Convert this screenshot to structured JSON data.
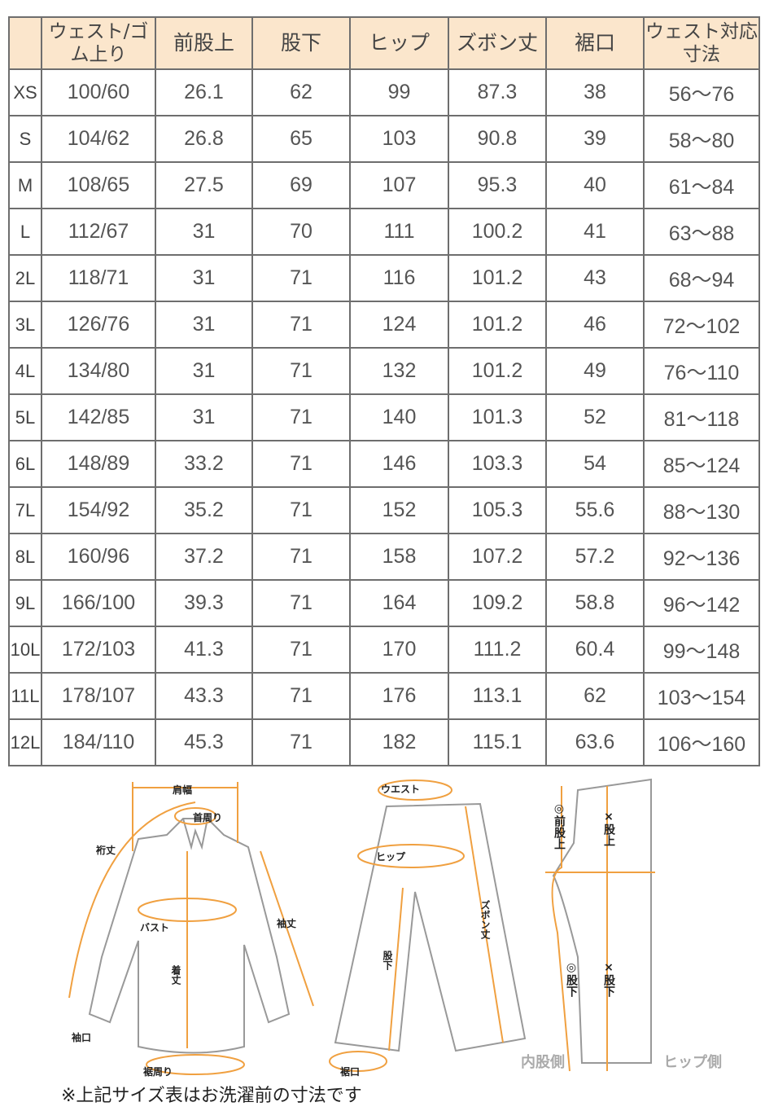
{
  "table": {
    "headers": [
      "",
      "ウェスト/ゴム上り",
      "前股上",
      "股下",
      "ヒップ",
      "ズボン丈",
      "裾口",
      "ウェスト対応寸法"
    ],
    "rows": [
      [
        "XS",
        "100/60",
        "26.1",
        "62",
        "99",
        "87.3",
        "38",
        "56～76"
      ],
      [
        "S",
        "104/62",
        "26.8",
        "65",
        "103",
        "90.8",
        "39",
        "58～80"
      ],
      [
        "M",
        "108/65",
        "27.5",
        "69",
        "107",
        "95.3",
        "40",
        "61～84"
      ],
      [
        "L",
        "112/67",
        "31",
        "70",
        "111",
        "100.2",
        "41",
        "63～88"
      ],
      [
        "2L",
        "118/71",
        "31",
        "71",
        "116",
        "101.2",
        "43",
        "68～94"
      ],
      [
        "3L",
        "126/76",
        "31",
        "71",
        "124",
        "101.2",
        "46",
        "72～102"
      ],
      [
        "4L",
        "134/80",
        "31",
        "71",
        "132",
        "101.2",
        "49",
        "76～110"
      ],
      [
        "5L",
        "142/85",
        "31",
        "71",
        "140",
        "101.3",
        "52",
        "81～118"
      ],
      [
        "6L",
        "148/89",
        "33.2",
        "71",
        "146",
        "103.3",
        "54",
        "85～124"
      ],
      [
        "7L",
        "154/92",
        "35.2",
        "71",
        "152",
        "105.3",
        "55.6",
        "88～130"
      ],
      [
        "8L",
        "160/96",
        "37.2",
        "71",
        "158",
        "107.2",
        "57.2",
        "92～136"
      ],
      [
        "9L",
        "166/100",
        "39.3",
        "71",
        "164",
        "109.2",
        "58.8",
        "96～142"
      ],
      [
        "10L",
        "172/103",
        "41.3",
        "71",
        "170",
        "111.2",
        "60.4",
        "99～148"
      ],
      [
        "11L",
        "178/107",
        "43.3",
        "71",
        "176",
        "113.1",
        "62",
        "103～154"
      ],
      [
        "12L",
        "184/110",
        "45.3",
        "71",
        "182",
        "115.1",
        "63.6",
        "106～160"
      ]
    ]
  },
  "diagram": {
    "shirt": {
      "shoulder": "肩幅",
      "neck": "首周り",
      "yuki": "裄丈",
      "sleeve": "袖丈",
      "bust": "バスト",
      "length": "着丈",
      "cuff": "袖口",
      "hem": "裾周り"
    },
    "pants": {
      "waist": "ウエスト",
      "hip": "ヒップ",
      "inseam": "股下",
      "length": "ズボン丈",
      "hem": "裾口"
    },
    "side": {
      "front_rise": "◎前股上",
      "rise": "×股上",
      "inseam_good": "◎股下",
      "inseam_bad": "×股下",
      "inner": "内股側",
      "hip_side": "ヒップ側"
    }
  },
  "note": "※上記サイズ表はお洗濯前の寸法です",
  "colors": {
    "header_bg": "#fbe6cc",
    "border": "#6e6e6e",
    "measure": "#f0a040"
  }
}
